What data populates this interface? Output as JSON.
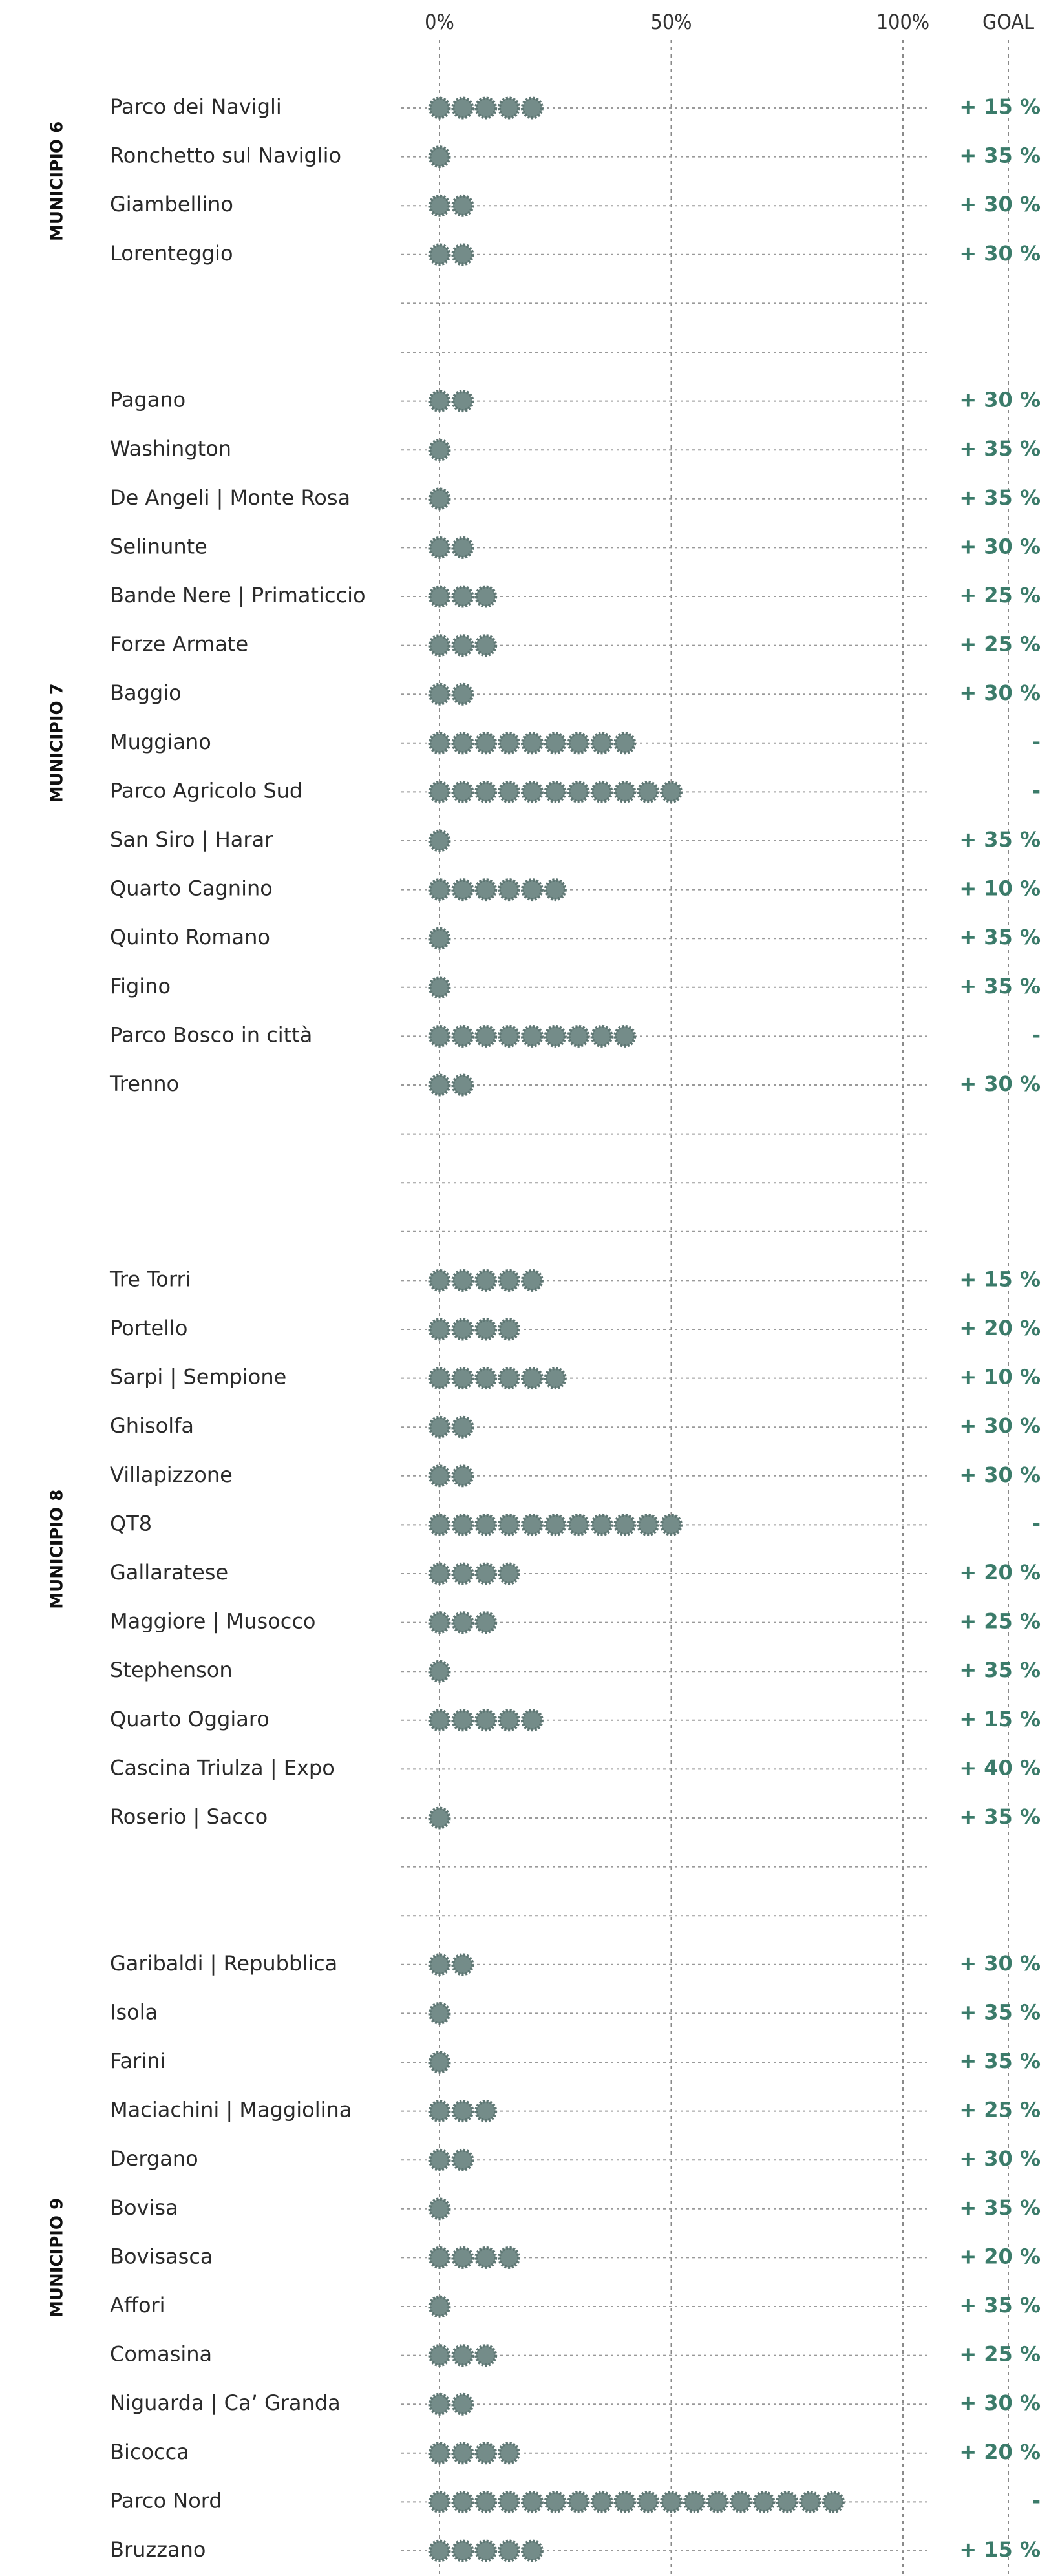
{
  "chart_data": {
    "type": "icon-bar",
    "xlim": [
      0,
      100
    ],
    "xticks": [
      {
        "value": 0,
        "label": "0%"
      },
      {
        "value": 50,
        "label": "50%"
      },
      {
        "value": 100,
        "label": "100%"
      }
    ],
    "goal_header": "GOAL",
    "color": "#748c89",
    "groups": [
      {
        "name": "MUNICIPIO 6",
        "categories": [
          "Parco dei Navigli",
          "Ronchetto sul Naviglio",
          "Giambellino",
          "Lorenteggio"
        ],
        "values": [
          25,
          5,
          10,
          10
        ],
        "goals": [
          "+ 15 %",
          "+ 35 %",
          "+ 30 %",
          "+ 30 %"
        ]
      },
      {
        "name": "MUNICIPIO 7",
        "categories": [
          "Pagano",
          "Washington",
          "De Angeli | Monte Rosa",
          "Selinunte",
          "Bande Nere | Primaticcio",
          "Forze Armate",
          "Baggio",
          "Muggiano",
          "Parco Agricolo Sud",
          "San Siro | Harar",
          "Quarto Cagnino",
          "Quinto Romano",
          "Figino",
          "Parco Bosco in città",
          "Trenno"
        ],
        "values": [
          10,
          5,
          5,
          10,
          15,
          15,
          10,
          45,
          55,
          5,
          30,
          5,
          5,
          45,
          10
        ],
        "goals": [
          "+ 30 %",
          "+ 35 %",
          "+ 35 %",
          "+ 30 %",
          "+ 25 %",
          "+ 25 %",
          "+ 30 %",
          "-",
          "-",
          "+ 35 %",
          "+ 10 %",
          "+ 35 %",
          "+ 35 %",
          "-",
          "+ 30 %"
        ]
      },
      {
        "name": "MUNICIPIO 8",
        "categories": [
          "Tre Torri",
          "Portello",
          "Sarpi | Sempione",
          "Ghisolfa",
          "Villapizzone",
          "QT8",
          "Gallaratese",
          "Maggiore | Musocco",
          "Stephenson",
          "Quarto Oggiaro",
          "Cascina Triulza | Expo",
          "Roserio | Sacco"
        ],
        "values": [
          25,
          20,
          30,
          10,
          10,
          55,
          20,
          15,
          5,
          25,
          0,
          5
        ],
        "goals": [
          "+ 15 %",
          "+ 20 %",
          "+ 10 %",
          "+ 30 %",
          "+ 30 %",
          "-",
          "+ 20 %",
          "+ 25 %",
          "+ 35 %",
          "+ 15 %",
          "+ 40 %",
          "+ 35 %"
        ]
      },
      {
        "name": "MUNICIPIO 9",
        "categories": [
          "Garibaldi | Repubblica",
          "Isola",
          "Farini",
          "Maciachini | Maggiolina",
          "Dergano",
          "Bovisa",
          "Bovisasca",
          "Affori",
          "Comasina",
          "Niguarda | Ca’ Granda",
          "Bicocca",
          "Parco Nord",
          "Bruzzano"
        ],
        "values": [
          10,
          5,
          5,
          15,
          10,
          5,
          20,
          5,
          15,
          10,
          20,
          90,
          25
        ],
        "goals": [
          "+ 30 %",
          "+ 35 %",
          "+ 35 %",
          "+ 25 %",
          "+ 30 %",
          "+ 35 %",
          "+ 20 %",
          "+ 35 %",
          "+ 25 %",
          "+ 30 %",
          "+ 20 %",
          "-",
          "+ 15 %"
        ]
      }
    ]
  }
}
